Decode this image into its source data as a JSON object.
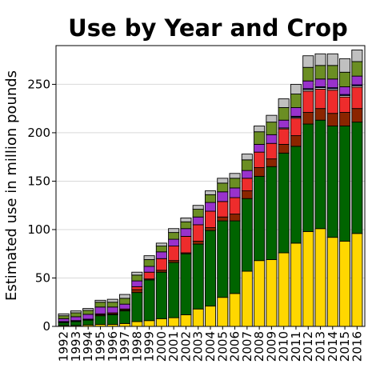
{
  "chart_data": {
    "type": "bar",
    "stacked": true,
    "title": "Use by Year and Crop",
    "xlabel": "",
    "ylabel": "Estimated use in million pounds",
    "ylim": [
      0,
      290
    ],
    "yticks": [
      0,
      50,
      100,
      150,
      200,
      250
    ],
    "grid": true,
    "legend": "none",
    "categories": [
      "1992",
      "1993",
      "1994",
      "1995",
      "1996",
      "1997",
      "1998",
      "1999",
      "2000",
      "2001",
      "2002",
      "2003",
      "2004",
      "2005",
      "2006",
      "2007",
      "2008",
      "2009",
      "2010",
      "2011",
      "2012",
      "2013",
      "2014",
      "2015",
      "2016"
    ],
    "series": [
      {
        "color": "#FFD700",
        "values": [
          1,
          1,
          1.5,
          2,
          2,
          3,
          5,
          6,
          8,
          9,
          12,
          18,
          21,
          30,
          34,
          57,
          68,
          69,
          76,
          86,
          98,
          101,
          92,
          88,
          96
        ]
      },
      {
        "color": "#006400",
        "values": [
          3,
          4,
          5,
          9,
          10,
          13,
          30,
          42,
          48,
          57,
          63,
          67,
          78,
          79,
          75,
          75,
          87,
          96,
          103,
          100,
          111,
          112,
          115,
          119,
          115
        ]
      },
      {
        "color": "#8B2500",
        "values": [
          0.5,
          0.5,
          0.5,
          1,
          1,
          1,
          3,
          1,
          2,
          2,
          1,
          3,
          3,
          4,
          7,
          8,
          9,
          8,
          9,
          11,
          12,
          12,
          13,
          14,
          14
        ]
      },
      {
        "color": "#EE2C2C",
        "values": [
          0.5,
          0.5,
          0.5,
          1,
          1,
          1,
          3,
          7,
          12,
          15,
          17,
          17,
          17,
          16,
          17,
          13,
          16,
          16,
          16,
          18,
          22,
          20,
          24,
          16,
          22
        ]
      },
      {
        "color": "#FFFFFF",
        "values": [
          0,
          0,
          0,
          0,
          0,
          0,
          0,
          0,
          0,
          0,
          0,
          0,
          0,
          0,
          0,
          0,
          0,
          0,
          1,
          1,
          1.5,
          1.5,
          1.5,
          1.5,
          1.5
        ]
      },
      {
        "color": "#0000CD",
        "values": [
          0,
          0,
          0,
          0,
          0,
          0,
          0,
          0,
          0,
          0,
          0,
          0,
          0,
          0,
          0,
          0,
          0,
          0,
          0,
          1,
          1,
          1,
          1,
          1,
          1
        ]
      },
      {
        "color": "#9932CC",
        "values": [
          3,
          4,
          5,
          7,
          6,
          5,
          6,
          6,
          7,
          7,
          8,
          8,
          9,
          10,
          10,
          8,
          8,
          9,
          8,
          9,
          8,
          8,
          9,
          8,
          9
        ]
      },
      {
        "color": "#6B8E23",
        "values": [
          3,
          4,
          4,
          5,
          5,
          6,
          6,
          7,
          6,
          7,
          7,
          8,
          8,
          9,
          10,
          11,
          13,
          13,
          13,
          14,
          14,
          14,
          14,
          15,
          15
        ]
      },
      {
        "color": "#C0C0C0",
        "values": [
          2,
          2,
          2,
          2,
          3,
          4,
          3,
          4,
          3,
          4,
          4,
          4,
          4,
          5,
          5,
          6,
          6,
          7,
          9,
          10,
          12,
          12,
          12,
          14,
          12
        ]
      }
    ]
  }
}
